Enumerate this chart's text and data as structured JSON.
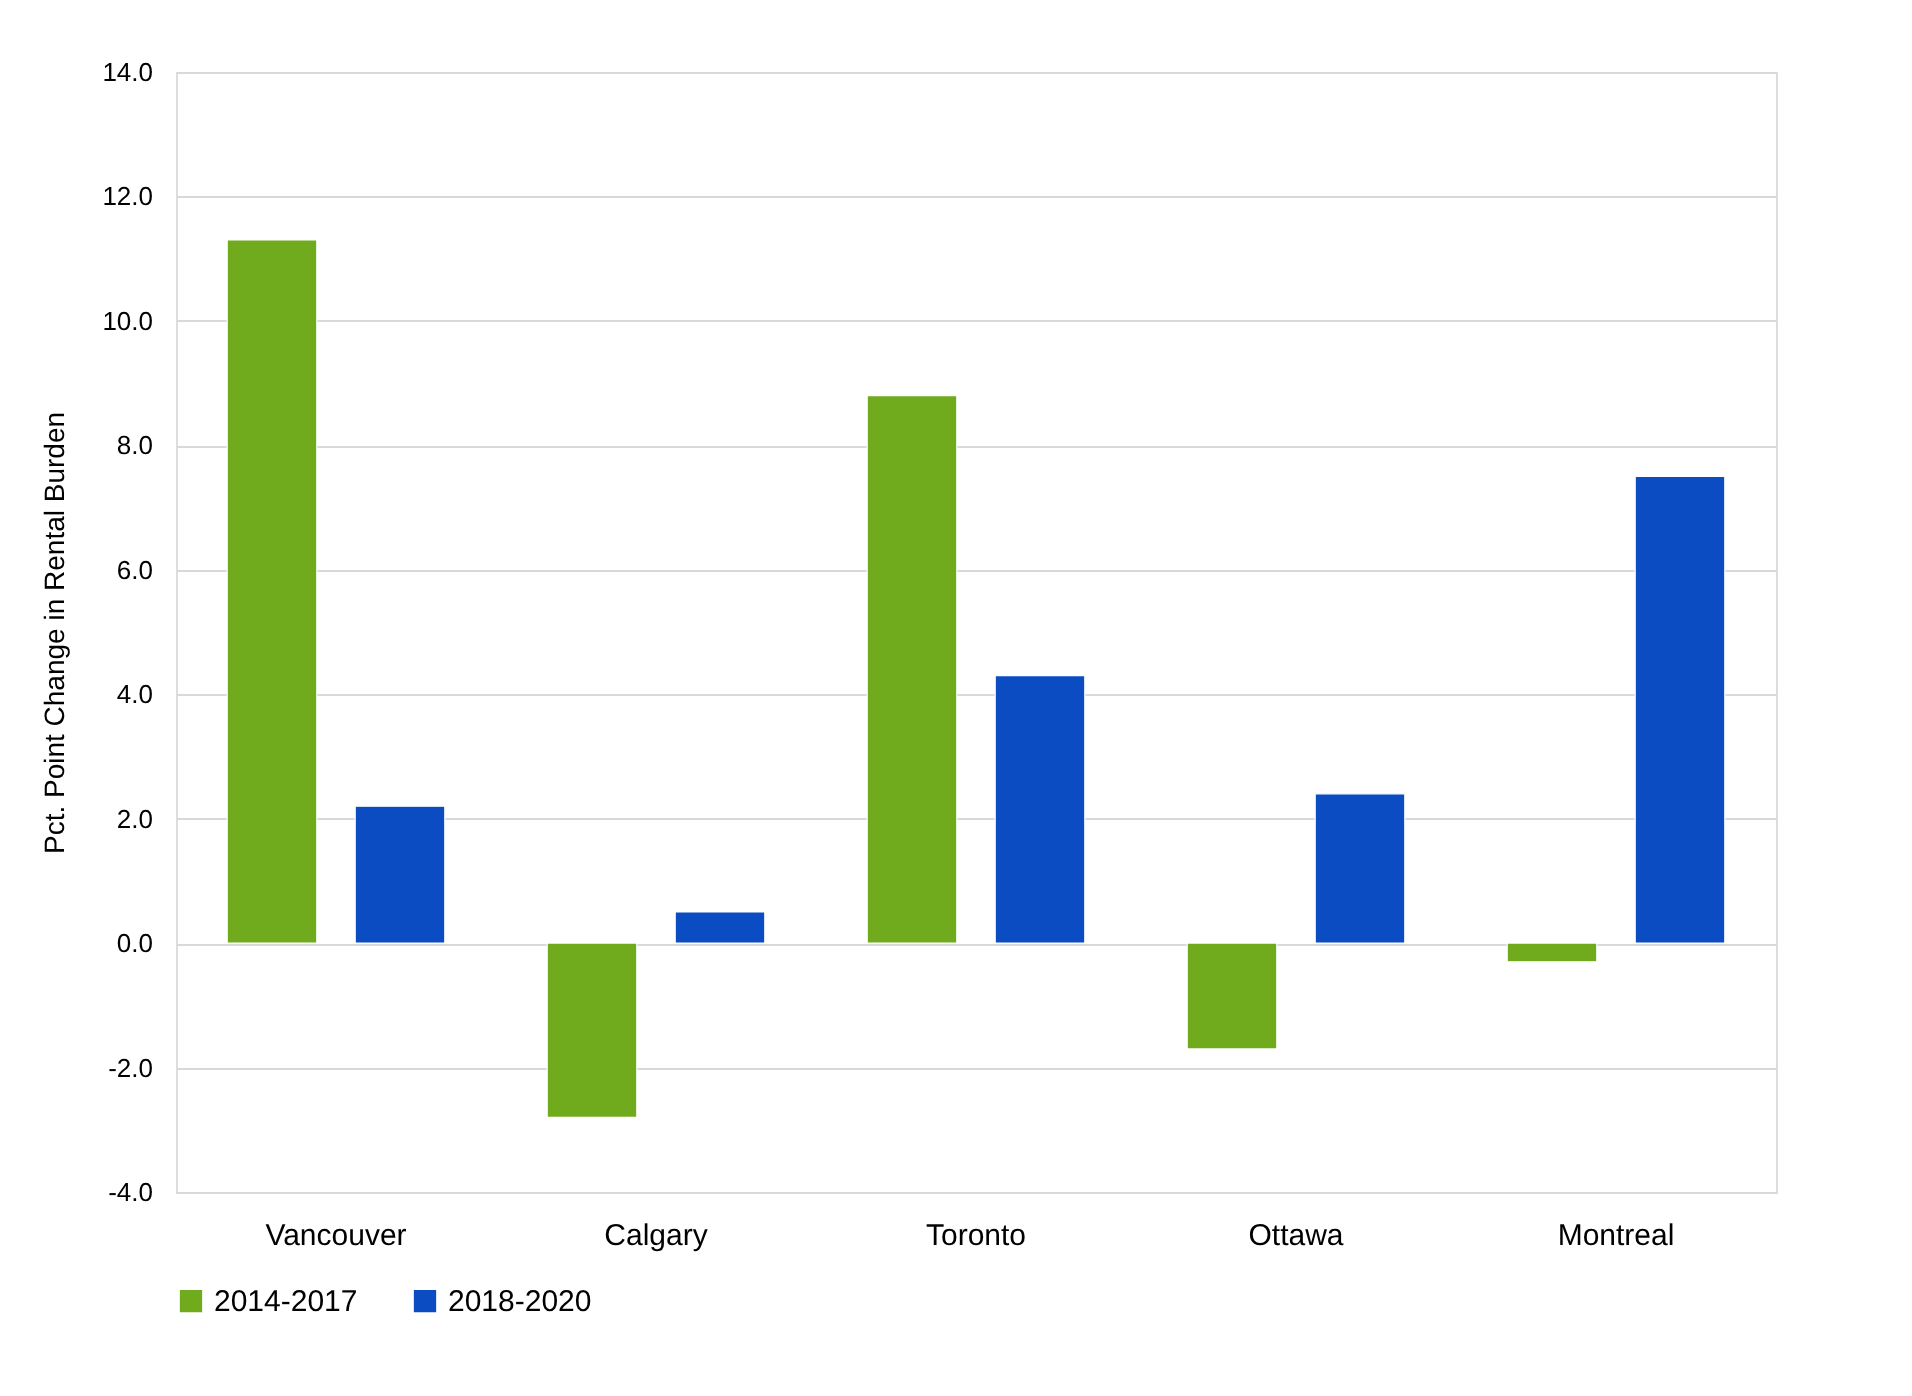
{
  "chart_data": {
    "type": "bar",
    "ylabel": "Pct. Point Change in Rental Burden",
    "categories": [
      "Vancouver",
      "Calgary",
      "Toronto",
      "Ottawa",
      "Montreal"
    ],
    "series": [
      {
        "name": "2014-2017",
        "color": "#6fab1d",
        "values": [
          11.3,
          -2.8,
          8.8,
          -1.7,
          -0.3
        ]
      },
      {
        "name": "2018-2020",
        "color": "#0b4cc3",
        "values": [
          2.2,
          0.5,
          4.3,
          2.4,
          7.5
        ]
      }
    ],
    "ylim": [
      -4,
      14
    ],
    "yticks": [
      {
        "value": -4,
        "label": "-4.0"
      },
      {
        "value": -2,
        "label": "-2.0"
      },
      {
        "value": 0,
        "label": "0.0"
      },
      {
        "value": 2,
        "label": "2.0"
      },
      {
        "value": 4,
        "label": "4.0"
      },
      {
        "value": 6,
        "label": "6.0"
      },
      {
        "value": 8,
        "label": "8.0"
      },
      {
        "value": 10,
        "label": "10.0"
      },
      {
        "value": 12,
        "label": "12.0"
      },
      {
        "value": 14,
        "label": "14.0"
      }
    ],
    "grid": "y",
    "legend": "bottom"
  }
}
